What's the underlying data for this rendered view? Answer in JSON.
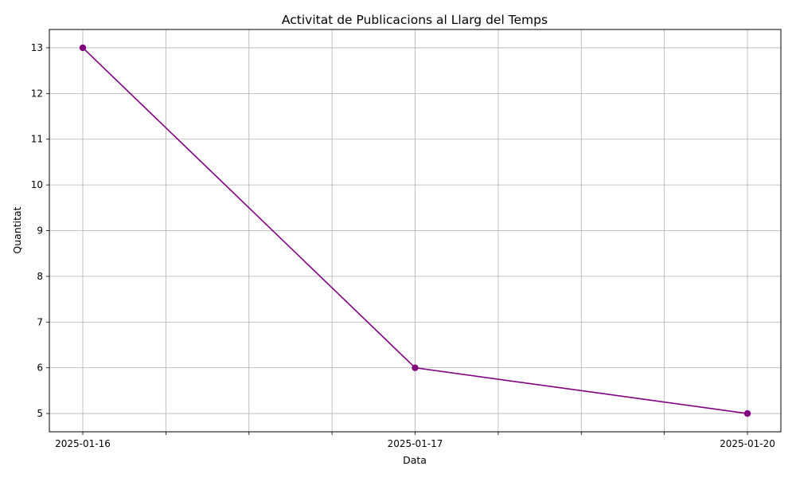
{
  "chart_data": {
    "type": "line",
    "title": "Activitat de Publicacions al Llarg del Temps",
    "xlabel": "Data",
    "ylabel": "Quantitat",
    "x": [
      "2025-01-16",
      "2025-01-17",
      "2025-01-20"
    ],
    "x_tick_labels": [
      "2025-01-16",
      "",
      "",
      "",
      "2025-01-17",
      "",
      "",
      "",
      "2025-01-20"
    ],
    "series": [
      {
        "values": [
          13,
          6,
          5
        ],
        "color": "#800080",
        "marker": "circle"
      }
    ],
    "y_ticks": [
      5,
      6,
      7,
      8,
      9,
      10,
      11,
      12,
      13
    ],
    "ylim": [
      4.6,
      13.4
    ],
    "grid": true,
    "grid_color": "#b0b0b0",
    "axis_color": "#000000"
  }
}
